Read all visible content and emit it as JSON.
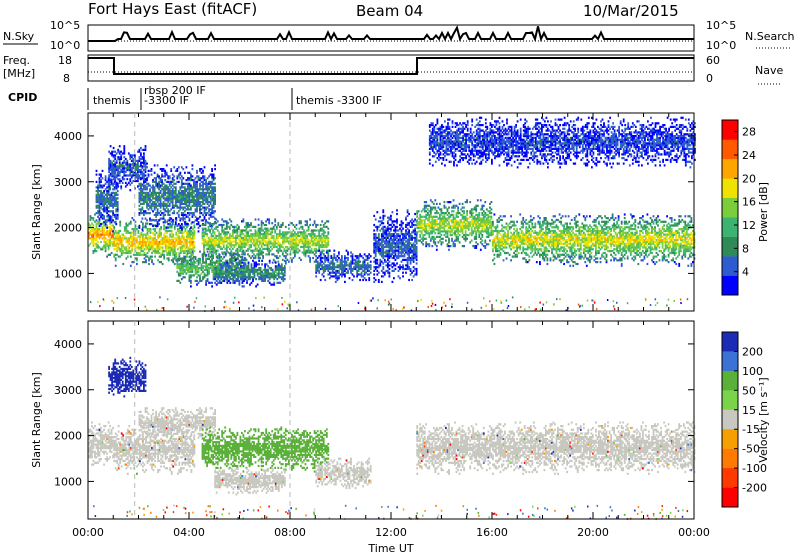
{
  "title": {
    "station": "Fort Hays East (fitACF)",
    "beam": "Beam 04",
    "date": "10/Mar/2015"
  },
  "header_panels": {
    "nsky_label": "N.Sky",
    "nsky_ticks": [
      "10^5",
      "10^0"
    ],
    "nsearch_label": "N.Search",
    "nsearch_ticks": [
      "10^5",
      "10^0"
    ],
    "freq_label_line1": "Freq.",
    "freq_label_line2": "[MHz]",
    "freq_ticks": [
      "18",
      "8"
    ],
    "nave_label": "Nave",
    "nave_ticks": [
      "60",
      "0"
    ],
    "cpid_label": "CPID",
    "cpid_segments": [
      {
        "start_hour": 0,
        "text": "themis"
      },
      {
        "start_hour": 1.85,
        "text": "rbsp 200 IF",
        "text2": "-3300 IF"
      },
      {
        "start_hour": 8.0,
        "text": "themis -3300 IF"
      }
    ]
  },
  "chart_data": [
    {
      "type": "heatmap",
      "name": "power",
      "ylabel": "Slant Range [km]",
      "xlabel": "",
      "xlim": [
        0,
        24
      ],
      "ylim": [
        180,
        4500
      ],
      "yticks": [
        "1000",
        "2000",
        "3000",
        "4000"
      ],
      "colorbar": {
        "label": "Power [dB]",
        "ticks": [
          "4",
          "8",
          "12",
          "16",
          "20",
          "24",
          "28"
        ],
        "range": [
          0,
          30
        ],
        "colors": [
          "#0000ff",
          "#2f5bd0",
          "#2e8b57",
          "#3cb371",
          "#7ccd3c",
          "#f0e200",
          "#ffa500",
          "#ff5a00",
          "#ff0000"
        ]
      },
      "echo_bands": [
        {
          "t0": 0.0,
          "t1": 1.0,
          "r0": 1350,
          "r1": 2300,
          "p": 20
        },
        {
          "t0": 0.3,
          "t1": 1.2,
          "r0": 1900,
          "r1": 3300,
          "p": 6
        },
        {
          "t0": 0.8,
          "t1": 2.3,
          "r0": 2800,
          "r1": 3800,
          "p": 5
        },
        {
          "t0": 1.0,
          "t1": 4.2,
          "r0": 1150,
          "r1": 2200,
          "p": 18
        },
        {
          "t0": 2.0,
          "t1": 5.0,
          "r0": 1900,
          "r1": 3400,
          "p": 7
        },
        {
          "t0": 3.5,
          "t1": 6.2,
          "r0": 700,
          "r1": 1500,
          "p": 12
        },
        {
          "t0": 4.5,
          "t1": 9.5,
          "r0": 1200,
          "r1": 2200,
          "p": 15
        },
        {
          "t0": 5.0,
          "t1": 7.8,
          "r0": 700,
          "r1": 1300,
          "p": 8
        },
        {
          "t0": 9.0,
          "t1": 11.2,
          "r0": 800,
          "r1": 1500,
          "p": 6
        },
        {
          "t0": 11.3,
          "t1": 13.0,
          "r0": 800,
          "r1": 2400,
          "p": 5
        },
        {
          "t0": 13.0,
          "t1": 16.0,
          "r0": 1500,
          "r1": 2600,
          "p": 15
        },
        {
          "t0": 16.0,
          "t1": 24.0,
          "r0": 1150,
          "r1": 2300,
          "p": 16
        },
        {
          "t0": 13.5,
          "t1": 24.0,
          "r0": 3300,
          "r1": 4400,
          "p": 4
        }
      ],
      "ground_scatter_bands": [],
      "dashed_time_markers": [
        1.85,
        8.0
      ]
    },
    {
      "type": "heatmap",
      "name": "velocity",
      "ylabel": "Slant Range [km]",
      "xlabel": "Time UT",
      "xlim": [
        0,
        24
      ],
      "ylim": [
        180,
        4500
      ],
      "yticks": [
        "1000",
        "2000",
        "3000",
        "4000"
      ],
      "xticks": [
        "00:00",
        "04:00",
        "08:00",
        "12:00",
        "16:00",
        "20:00",
        "00:00"
      ],
      "colorbar": {
        "label": "Velocity [m s⁻¹]",
        "ticks": [
          "200",
          "100",
          "50",
          "15",
          "-15",
          "-50",
          "-100",
          "-200"
        ],
        "colors": [
          "#1c2bb5",
          "#3a72d6",
          "#5bb03a",
          "#7ad44a",
          "#c8c8c0",
          "#f5a000",
          "#ff7a00",
          "#ff3a00",
          "#ff0000"
        ]
      },
      "echo_bands": [
        {
          "t0": 0.0,
          "t1": 1.0,
          "r0": 1350,
          "r1": 2300,
          "v": "gs"
        },
        {
          "t0": 0.8,
          "t1": 2.3,
          "r0": 2800,
          "r1": 3700,
          "v": "150"
        },
        {
          "t0": 1.0,
          "t1": 4.2,
          "r0": 1150,
          "r1": 2200,
          "v": "gs"
        },
        {
          "t0": 2.0,
          "t1": 5.0,
          "r0": 1900,
          "r1": 2600,
          "v": "gs"
        },
        {
          "t0": 4.5,
          "t1": 9.5,
          "r0": 1200,
          "r1": 2200,
          "v": "50"
        },
        {
          "t0": 5.0,
          "t1": 7.8,
          "r0": 700,
          "r1": 1300,
          "v": "gs"
        },
        {
          "t0": 9.0,
          "t1": 11.2,
          "r0": 800,
          "r1": 1500,
          "v": "gs"
        },
        {
          "t0": 13.0,
          "t1": 24.0,
          "r0": 1150,
          "r1": 2300,
          "v": "gs"
        }
      ],
      "dashed_time_markers": [
        1.85,
        8.0
      ]
    }
  ]
}
